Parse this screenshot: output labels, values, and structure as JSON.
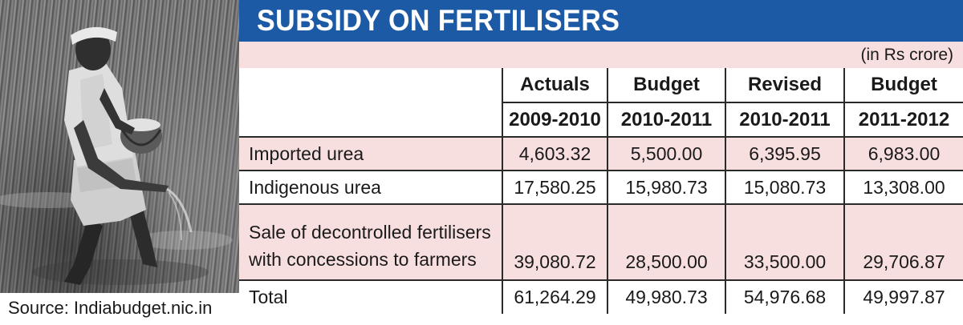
{
  "title": "SUBSIDY ON FERTILISERS",
  "unit_note": "(in Rs crore)",
  "columns": [
    {
      "kind": "Actuals",
      "period": "2009-2010"
    },
    {
      "kind": "Budget",
      "period": "2010-2011"
    },
    {
      "kind": "Revised",
      "period": "2010-2011"
    },
    {
      "kind": "Budget",
      "period": "2011-2012"
    }
  ],
  "rows": [
    {
      "label": "Imported urea",
      "values": [
        "4,603.32",
        "5,500.00",
        "6,395.95",
        "6,983.00"
      ]
    },
    {
      "label": "Indigenous urea",
      "values": [
        "17,580.25",
        "15,980.73",
        "15,080.73",
        "13,308.00"
      ]
    },
    {
      "label_line1": "Sale of decontrolled fertilisers",
      "label_line2": "with concessions to farmers",
      "values": [
        "39,080.72",
        "28,500.00",
        "33,500.00",
        "29,706.87"
      ]
    },
    {
      "label": "Total",
      "values": [
        "61,264.29",
        "49,980.73",
        "54,976.68",
        "49,997.87"
      ]
    }
  ],
  "source": "Source: Indiabudget.nic.in",
  "colors": {
    "title_band": "#1c5aa6",
    "row_tint": "#f8dfdf"
  }
}
